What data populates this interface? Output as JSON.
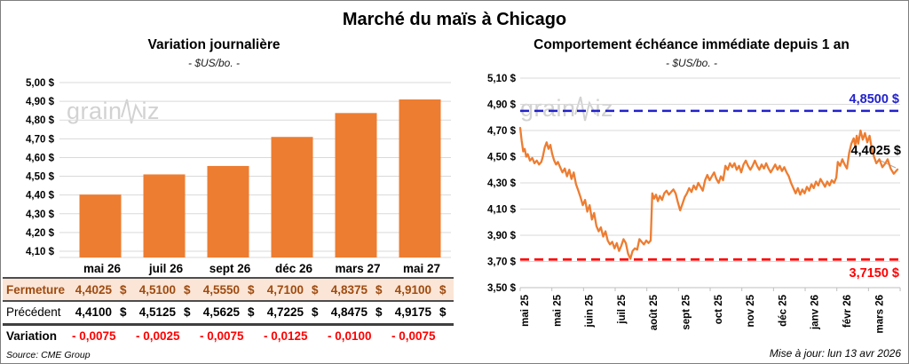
{
  "page": {
    "title": "Marché du maïs à Chicago",
    "update_note": "Mise à jour: lun 13 avr 2026",
    "source_note": "Source: CME Group",
    "watermark_left": "grain",
    "watermark_right": "iz"
  },
  "colors": {
    "orange": "#ed7d31",
    "blue": "#2222cc",
    "red": "#ff0000",
    "grid": "#d9d9d9",
    "axis": "#bfbfbf",
    "leader": "#a6a6a6",
    "fermeture_bg": "#fbe5d6",
    "fermeture_text": "#9e4b10",
    "watermark": "#c3c3c3"
  },
  "table": {
    "columns": [
      "mai 26",
      "juil 26",
      "sept 26",
      "déc 26",
      "mars 27",
      "mai 27"
    ],
    "rows": [
      {
        "key": "fermeture",
        "label": "Fermeture",
        "currency": "$",
        "values": [
          "4,4025",
          "4,5100",
          "4,5550",
          "4,7100",
          "4,8375",
          "4,9100"
        ]
      },
      {
        "key": "precedent",
        "label": "Précédent",
        "currency": "$",
        "values": [
          "4,4100",
          "4,5125",
          "4,5625",
          "4,7225",
          "4,8475",
          "4,9175"
        ]
      },
      {
        "key": "variation",
        "label": "Variation",
        "currency": "",
        "values": [
          "- 0,0075",
          "- 0,0025",
          "- 0,0075",
          "- 0,0125",
          "- 0,0100",
          "- 0,0075"
        ]
      }
    ]
  },
  "chart_data": [
    {
      "type": "bar",
      "title": "Variation journalière",
      "subtitle": "- $US/bo. -",
      "categories": [
        "mai 26",
        "juil 26",
        "sept 26",
        "déc 26",
        "mars 27",
        "mai 27"
      ],
      "values": [
        4.4025,
        4.51,
        4.555,
        4.71,
        4.8375,
        4.91
      ],
      "bar_color": "#ed7d31",
      "ylim": [
        4.05,
        5.0
      ],
      "ytick_values": [
        4.1,
        4.2,
        4.3,
        4.4,
        4.5,
        4.6,
        4.7,
        4.8,
        4.9,
        5.0
      ],
      "ytick_labels": [
        "4,10 $",
        "4,20 $",
        "4,30 $",
        "4,40 $",
        "4,50 $",
        "4,60 $",
        "4,70 $",
        "4,80 $",
        "4,90 $",
        "5,00 $"
      ],
      "grid": true
    },
    {
      "type": "line",
      "title": "Comportement échéance immédiate depuis 1 an",
      "subtitle": "- $US/bo. -",
      "ylim": [
        3.5,
        5.1
      ],
      "ytick_values": [
        3.5,
        3.7,
        3.9,
        4.1,
        4.3,
        4.5,
        4.7,
        4.9,
        5.1
      ],
      "ytick_labels": [
        "3,50 $",
        "3,70 $",
        "3,90 $",
        "4,10 $",
        "4,30 $",
        "4,50 $",
        "4,70 $",
        "4,90 $",
        "5,10 $"
      ],
      "xtick_labels": [
        "mai 25",
        "mai 25",
        "juin 25",
        "juil 25",
        "août 25",
        "sept 25",
        "oct 25",
        "nov 25",
        "déc 25",
        "janv 26",
        "févr 26",
        "mars 26"
      ],
      "grid": true,
      "hlines": [
        {
          "value": 4.85,
          "label": "4,8500 $",
          "color": "#2222cc",
          "style": "dashed"
        },
        {
          "value": 3.715,
          "label": "3,7150 $",
          "color": "#ff0000",
          "style": "dashed"
        }
      ],
      "last_value": 4.4025,
      "last_value_label": "4,4025 $",
      "series": [
        {
          "name": "échéance immédiate",
          "color": "#ed7d31",
          "points": [
            [
              0.0,
              4.72
            ],
            [
              0.004,
              4.62
            ],
            [
              0.008,
              4.54
            ],
            [
              0.012,
              4.56
            ],
            [
              0.016,
              4.5
            ],
            [
              0.02,
              4.52
            ],
            [
              0.026,
              4.47
            ],
            [
              0.032,
              4.49
            ],
            [
              0.038,
              4.45
            ],
            [
              0.044,
              4.47
            ],
            [
              0.05,
              4.44
            ],
            [
              0.056,
              4.46
            ],
            [
              0.06,
              4.5
            ],
            [
              0.065,
              4.57
            ],
            [
              0.07,
              4.61
            ],
            [
              0.075,
              4.56
            ],
            [
              0.08,
              4.59
            ],
            [
              0.085,
              4.52
            ],
            [
              0.09,
              4.47
            ],
            [
              0.095,
              4.44
            ],
            [
              0.1,
              4.46
            ],
            [
              0.106,
              4.42
            ],
            [
              0.112,
              4.38
            ],
            [
              0.118,
              4.41
            ],
            [
              0.124,
              4.35
            ],
            [
              0.13,
              4.4
            ],
            [
              0.136,
              4.33
            ],
            [
              0.142,
              4.38
            ],
            [
              0.148,
              4.29
            ],
            [
              0.154,
              4.24
            ],
            [
              0.16,
              4.19
            ],
            [
              0.166,
              4.13
            ],
            [
              0.172,
              4.17
            ],
            [
              0.178,
              4.08
            ],
            [
              0.184,
              4.13
            ],
            [
              0.19,
              4.02
            ],
            [
              0.196,
              4.07
            ],
            [
              0.202,
              3.97
            ],
            [
              0.208,
              3.93
            ],
            [
              0.214,
              3.96
            ],
            [
              0.22,
              3.89
            ],
            [
              0.226,
              3.93
            ],
            [
              0.232,
              3.86
            ],
            [
              0.238,
              3.83
            ],
            [
              0.244,
              3.85
            ],
            [
              0.25,
              3.8
            ],
            [
              0.256,
              3.84
            ],
            [
              0.262,
              3.78
            ],
            [
              0.268,
              3.82
            ],
            [
              0.274,
              3.87
            ],
            [
              0.28,
              3.84
            ],
            [
              0.286,
              3.76
            ],
            [
              0.292,
              3.72
            ],
            [
              0.298,
              3.78
            ],
            [
              0.304,
              3.8
            ],
            [
              0.31,
              3.79
            ],
            [
              0.316,
              3.87
            ],
            [
              0.322,
              3.85
            ],
            [
              0.328,
              3.83
            ],
            [
              0.334,
              3.86
            ],
            [
              0.34,
              3.84
            ],
            [
              0.346,
              3.86
            ],
            [
              0.35,
              4.22
            ],
            [
              0.355,
              4.18
            ],
            [
              0.36,
              4.21
            ],
            [
              0.365,
              4.16
            ],
            [
              0.37,
              4.2
            ],
            [
              0.376,
              4.17
            ],
            [
              0.382,
              4.22
            ],
            [
              0.388,
              4.24
            ],
            [
              0.394,
              4.21
            ],
            [
              0.4,
              4.23
            ],
            [
              0.406,
              4.25
            ],
            [
              0.412,
              4.22
            ],
            [
              0.418,
              4.15
            ],
            [
              0.424,
              4.09
            ],
            [
              0.43,
              4.14
            ],
            [
              0.436,
              4.19
            ],
            [
              0.442,
              4.22
            ],
            [
              0.448,
              4.26
            ],
            [
              0.454,
              4.23
            ],
            [
              0.46,
              4.28
            ],
            [
              0.466,
              4.25
            ],
            [
              0.472,
              4.3
            ],
            [
              0.478,
              4.27
            ],
            [
              0.484,
              4.24
            ],
            [
              0.49,
              4.32
            ],
            [
              0.496,
              4.36
            ],
            [
              0.502,
              4.32
            ],
            [
              0.508,
              4.35
            ],
            [
              0.514,
              4.38
            ],
            [
              0.52,
              4.33
            ],
            [
              0.526,
              4.3
            ],
            [
              0.532,
              4.35
            ],
            [
              0.538,
              4.32
            ],
            [
              0.544,
              4.43
            ],
            [
              0.55,
              4.4
            ],
            [
              0.556,
              4.45
            ],
            [
              0.562,
              4.42
            ],
            [
              0.568,
              4.45
            ],
            [
              0.574,
              4.4
            ],
            [
              0.58,
              4.43
            ],
            [
              0.586,
              4.38
            ],
            [
              0.592,
              4.44
            ],
            [
              0.598,
              4.47
            ],
            [
              0.604,
              4.43
            ],
            [
              0.61,
              4.4
            ],
            [
              0.616,
              4.43
            ],
            [
              0.622,
              4.47
            ],
            [
              0.628,
              4.43
            ],
            [
              0.634,
              4.4
            ],
            [
              0.64,
              4.44
            ],
            [
              0.646,
              4.41
            ],
            [
              0.652,
              4.45
            ],
            [
              0.658,
              4.41
            ],
            [
              0.664,
              4.38
            ],
            [
              0.67,
              4.41
            ],
            [
              0.676,
              4.44
            ],
            [
              0.682,
              4.4
            ],
            [
              0.688,
              4.43
            ],
            [
              0.694,
              4.39
            ],
            [
              0.7,
              4.42
            ],
            [
              0.706,
              4.38
            ],
            [
              0.712,
              4.35
            ],
            [
              0.718,
              4.3
            ],
            [
              0.724,
              4.26
            ],
            [
              0.73,
              4.22
            ],
            [
              0.736,
              4.26
            ],
            [
              0.742,
              4.21
            ],
            [
              0.748,
              4.25
            ],
            [
              0.754,
              4.22
            ],
            [
              0.76,
              4.27
            ],
            [
              0.766,
              4.24
            ],
            [
              0.772,
              4.29
            ],
            [
              0.778,
              4.26
            ],
            [
              0.784,
              4.31
            ],
            [
              0.79,
              4.28
            ],
            [
              0.796,
              4.33
            ],
            [
              0.802,
              4.3
            ],
            [
              0.808,
              4.27
            ],
            [
              0.814,
              4.31
            ],
            [
              0.82,
              4.28
            ],
            [
              0.826,
              4.32
            ],
            [
              0.832,
              4.3
            ],
            [
              0.838,
              4.34
            ],
            [
              0.842,
              4.46
            ],
            [
              0.848,
              4.43
            ],
            [
              0.854,
              4.48
            ],
            [
              0.86,
              4.44
            ],
            [
              0.866,
              4.41
            ],
            [
              0.872,
              4.53
            ],
            [
              0.878,
              4.6
            ],
            [
              0.884,
              4.64
            ],
            [
              0.888,
              4.58
            ],
            [
              0.892,
              4.66
            ],
            [
              0.896,
              4.6
            ],
            [
              0.902,
              4.7
            ],
            [
              0.908,
              4.63
            ],
            [
              0.914,
              4.68
            ],
            [
              0.92,
              4.61
            ],
            [
              0.926,
              4.66
            ],
            [
              0.932,
              4.56
            ],
            [
              0.938,
              4.5
            ],
            [
              0.944,
              4.45
            ],
            [
              0.952,
              4.48
            ],
            [
              0.96,
              4.42
            ],
            [
              0.968,
              4.45
            ],
            [
              0.974,
              4.48
            ],
            [
              0.982,
              4.41
            ],
            [
              0.99,
              4.37
            ],
            [
              1.0,
              4.4025
            ]
          ]
        }
      ]
    }
  ]
}
